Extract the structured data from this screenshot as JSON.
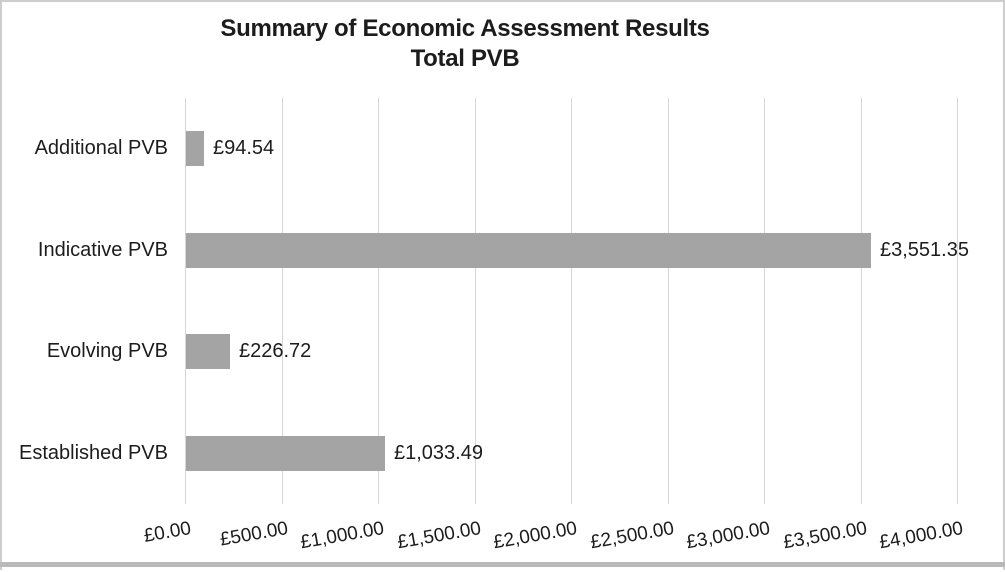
{
  "chart_data": {
    "type": "bar",
    "orientation": "horizontal",
    "title": "Summary of Economic Assessment Results",
    "subtitle": "Total PVB",
    "categories": [
      "Additional PVB",
      "Indicative PVB",
      "Evolving PVB",
      "Established PVB"
    ],
    "values": [
      94.54,
      3551.35,
      226.72,
      1033.49
    ],
    "data_labels": [
      "£94.54",
      "£3,551.35",
      "£226.72",
      "£1,033.49"
    ],
    "x_ticks": [
      "£0.00",
      "£500.00",
      "£1,000.00",
      "£1,500.00",
      "£2,000.00",
      "£2,500.00",
      "£3,000.00",
      "£3,500.00",
      "£4,000.00"
    ],
    "xlim": [
      0,
      4000
    ],
    "x_tick_step": 500,
    "grid": "vertical-only",
    "legend": "none",
    "colors": {
      "bar": "#a4a4a4",
      "gridline": "#d6d6d6",
      "text": "#1c1c1c",
      "frame_border": "#cdcdcd",
      "bottom_rule": "#b9b9b9",
      "background": "#ffffff"
    }
  }
}
